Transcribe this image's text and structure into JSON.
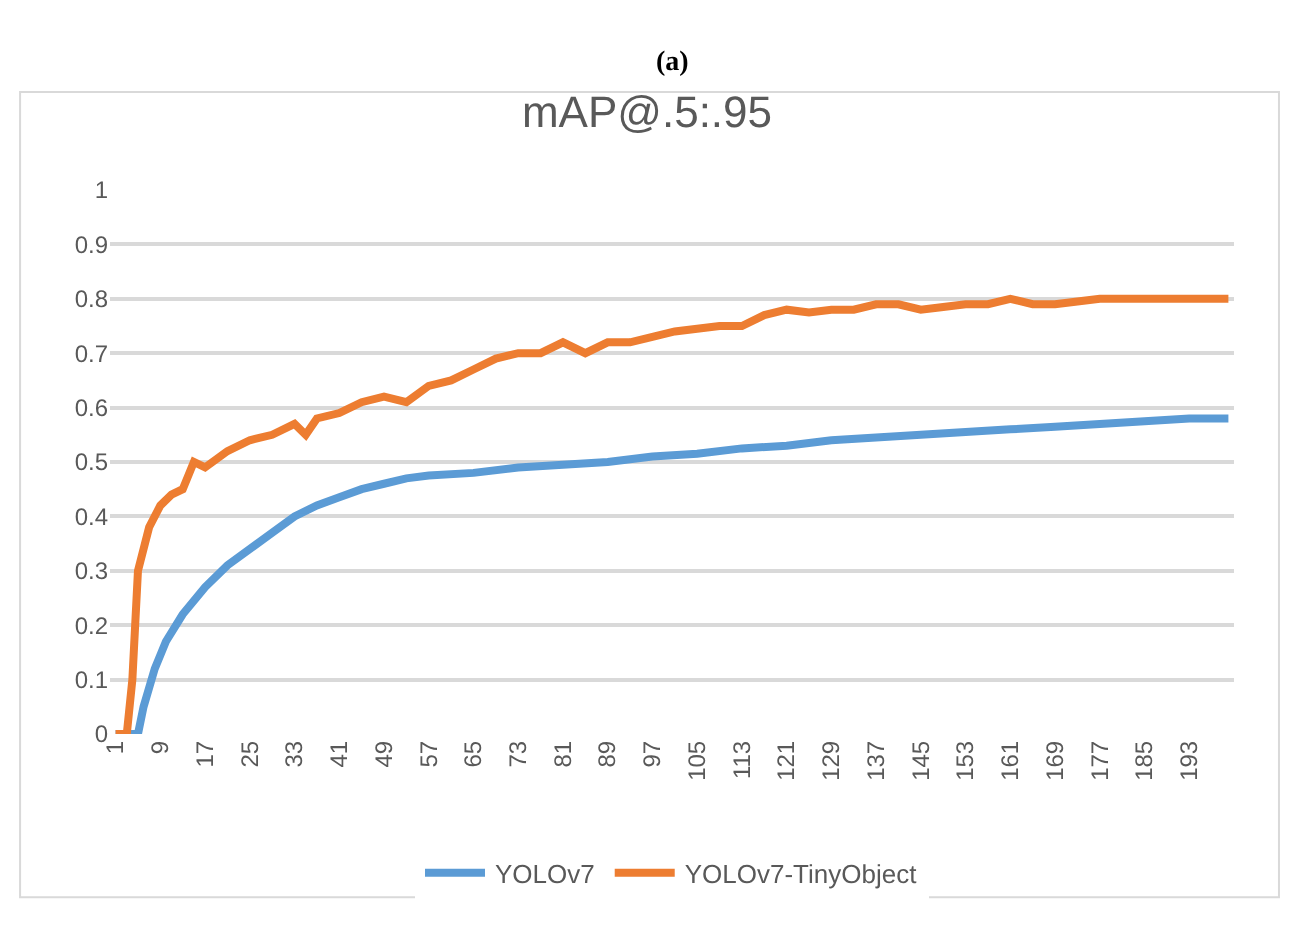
{
  "chart_data": {
    "type": "line",
    "title": "mAP@.5:.95",
    "annotations": [
      "(a)"
    ],
    "xlim": [
      0,
      201
    ],
    "xticks": [
      1,
      9,
      17,
      25,
      33,
      41,
      49,
      57,
      65,
      73,
      81,
      89,
      97,
      105,
      113,
      121,
      129,
      137,
      145,
      153,
      161,
      169,
      177,
      185,
      193
    ],
    "ylim": [
      0,
      1
    ],
    "yticks": [
      0,
      0.1,
      0.2,
      0.3,
      0.4,
      0.5,
      0.6,
      0.7,
      0.8,
      0.9,
      1
    ],
    "grid": "y",
    "legend": "bottom",
    "marker": "none",
    "line_style": "solid",
    "series": [
      {
        "name": "YOLOv7",
        "color": "#5b9bd5",
        "x": [
          1,
          3,
          5,
          6,
          8,
          10,
          13,
          17,
          21,
          25,
          29,
          33,
          37,
          41,
          45,
          49,
          53,
          57,
          65,
          73,
          81,
          89,
          97,
          105,
          113,
          121,
          129,
          137,
          145,
          153,
          161,
          169,
          177,
          185,
          193,
          200
        ],
        "values": [
          0,
          0,
          0,
          0.05,
          0.12,
          0.17,
          0.22,
          0.27,
          0.31,
          0.34,
          0.37,
          0.4,
          0.42,
          0.435,
          0.45,
          0.46,
          0.47,
          0.475,
          0.48,
          0.49,
          0.495,
          0.5,
          0.51,
          0.515,
          0.525,
          0.53,
          0.54,
          0.545,
          0.55,
          0.555,
          0.56,
          0.565,
          0.57,
          0.575,
          0.58,
          0.58
        ]
      },
      {
        "name": "YOLOv7-TinyObject",
        "color": "#ed7d31",
        "x": [
          1,
          3,
          4,
          5,
          7,
          9,
          11,
          13,
          15,
          17,
          21,
          25,
          29,
          33,
          35,
          37,
          41,
          45,
          49,
          53,
          57,
          61,
          65,
          69,
          73,
          77,
          81,
          85,
          89,
          93,
          97,
          101,
          105,
          109,
          113,
          117,
          121,
          125,
          129,
          133,
          137,
          141,
          145,
          149,
          153,
          157,
          161,
          165,
          169,
          173,
          177,
          181,
          185,
          189,
          193,
          197,
          200
        ],
        "values": [
          0,
          0,
          0.1,
          0.3,
          0.38,
          0.42,
          0.44,
          0.45,
          0.5,
          0.49,
          0.52,
          0.54,
          0.55,
          0.57,
          0.55,
          0.58,
          0.59,
          0.61,
          0.62,
          0.61,
          0.64,
          0.65,
          0.67,
          0.69,
          0.7,
          0.7,
          0.72,
          0.7,
          0.72,
          0.72,
          0.73,
          0.74,
          0.745,
          0.75,
          0.75,
          0.77,
          0.78,
          0.775,
          0.78,
          0.78,
          0.79,
          0.79,
          0.78,
          0.785,
          0.79,
          0.79,
          0.8,
          0.79,
          0.79,
          0.795,
          0.8,
          0.8,
          0.8,
          0.8,
          0.8,
          0.8,
          0.8
        ]
      }
    ]
  }
}
